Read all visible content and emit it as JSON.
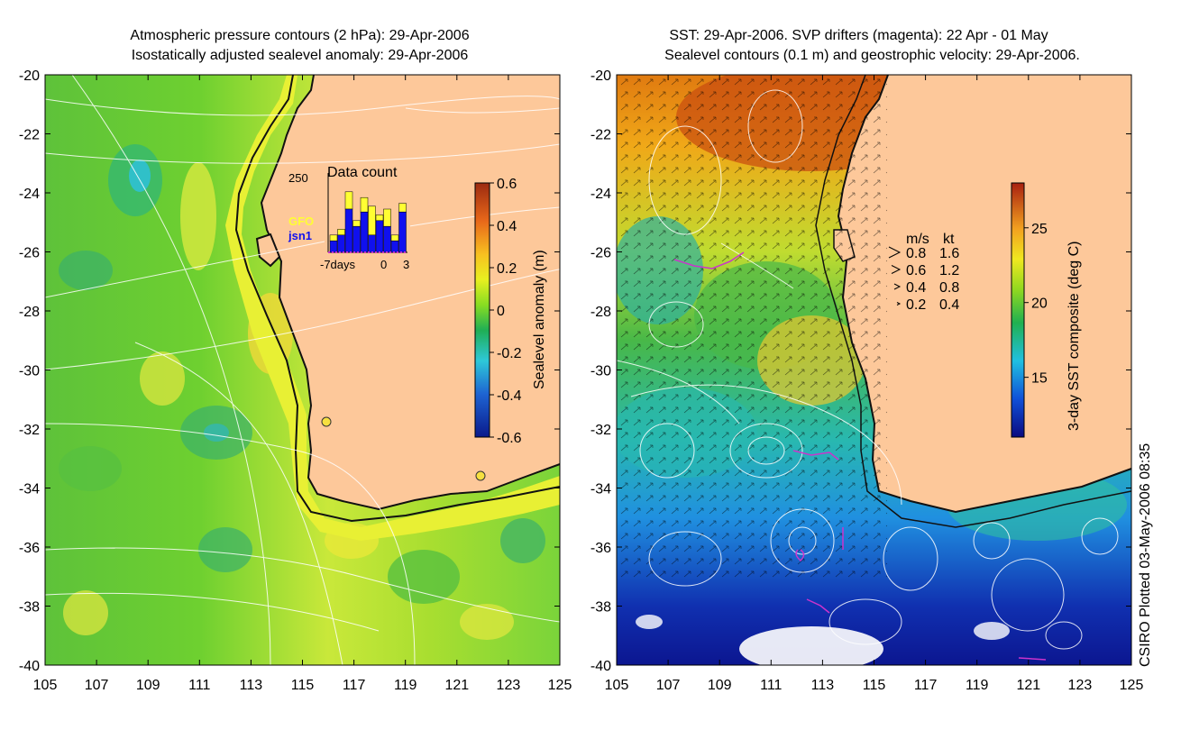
{
  "left_panel": {
    "title_line1": "Atmospheric pressure contours (2 hPa): 29-Apr-2006",
    "title_line2": "Isostatically adjusted sealevel anomaly: 29-Apr-2006",
    "y_ticks": [
      "-20",
      "-22",
      "-24",
      "-26",
      "-28",
      "-30",
      "-32",
      "-34",
      "-36",
      "-38",
      "-40"
    ],
    "x_ticks": [
      "105",
      "107",
      "109",
      "111",
      "113",
      "115",
      "117",
      "119",
      "121",
      "123",
      "125"
    ],
    "colorbar": {
      "label": "Sealevel anomaly (m)",
      "ticks": [
        "0.6",
        "0.4",
        "0.2",
        "0",
        "-0.2",
        "-0.4",
        "-0.6"
      ]
    },
    "inset": {
      "title": "Data count",
      "y_max_label": "250",
      "legend_gfo": "GFO",
      "legend_jsn1": "jsn1",
      "x_label_left": "-7days",
      "x_label_zero": "0",
      "x_label_right": "3",
      "gfo_color": "#ffff33",
      "jsn1_color": "#1010ee",
      "bars_total": [
        60,
        80,
        210,
        110,
        190,
        160,
        130,
        150,
        60,
        170
      ],
      "bars_jsn1": [
        40,
        60,
        150,
        90,
        140,
        60,
        110,
        90,
        40,
        140
      ]
    }
  },
  "right_panel": {
    "title_line1": "SST: 29-Apr-2006. SVP drifters (magenta): 22 Apr - 01 May",
    "title_line2": "Sealevel contours (0.1 m) and geostrophic velocity: 29-Apr-2006.",
    "y_ticks": [
      "-20",
      "-22",
      "-24",
      "-26",
      "-28",
      "-30",
      "-32",
      "-34",
      "-36",
      "-38",
      "-40"
    ],
    "x_ticks": [
      "105",
      "107",
      "109",
      "111",
      "113",
      "115",
      "117",
      "119",
      "121",
      "123",
      "125"
    ],
    "colorbar": {
      "label": "3-day SST composite (deg C)",
      "ticks": [
        "25",
        "20",
        "15"
      ]
    },
    "velocity_legend": {
      "header_ms": "m/s",
      "header_kt": "kt",
      "rows": [
        {
          "ms": "0.8",
          "kt": "1.6"
        },
        {
          "ms": "0.6",
          "kt": "1.2"
        },
        {
          "ms": "0.4",
          "kt": "0.8"
        },
        {
          "ms": "0.2",
          "kt": "0.4"
        }
      ]
    }
  },
  "footer_note": "CSIRO Plotted 03-May-2006 08:35",
  "colors": {
    "land": "#fdc89a",
    "drifter": "#cc33cc"
  }
}
